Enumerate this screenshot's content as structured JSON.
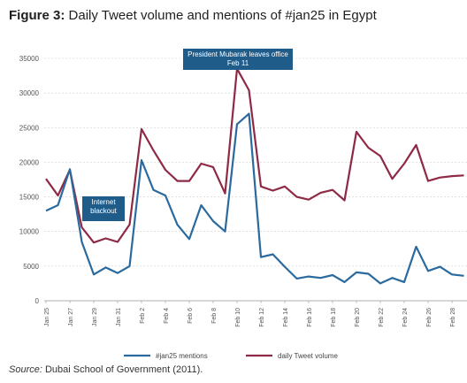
{
  "title": {
    "figure_label": "Figure 3:",
    "text": "Daily Tweet volume and mentions of #jan25 in Egypt"
  },
  "source": {
    "label": "Source:",
    "text": "Dubai School of Government (2011)."
  },
  "annotations": {
    "internet_blackout": "Internet blackout",
    "mubarak": "President Mubarak leaves office Feb 11"
  },
  "chart_data": {
    "type": "line",
    "title": "Daily Tweet volume and mentions of #jan25 in Egypt",
    "xlabel": "",
    "ylabel": "",
    "ylim": [
      0,
      35000
    ],
    "yticks": [
      0,
      5000,
      10000,
      15000,
      20000,
      25000,
      30000,
      35000
    ],
    "xtick_labels": [
      "Jan 25",
      "Jan 27",
      "Jan 29",
      "Jan 31",
      "Feb 2",
      "Feb 4",
      "Feb 6",
      "Feb 8",
      "Feb 10",
      "Feb 12",
      "Feb 14",
      "Feb 16",
      "Feb 18",
      "Feb 20",
      "Feb 22",
      "Feb 24",
      "Feb 26",
      "Feb 28"
    ],
    "grid": true,
    "legend_position": "bottom",
    "series": [
      {
        "name": "#jan25 mentions",
        "color": "#2a6a9e",
        "values": [
          13000,
          13800,
          19000,
          8500,
          3800,
          4800,
          4000,
          5000,
          20300,
          16000,
          15200,
          11000,
          8900,
          13800,
          11500,
          10000,
          25500,
          27000,
          6300,
          6700,
          4900,
          3200,
          3500,
          3300,
          3700,
          2700,
          4100,
          3900,
          2500,
          3300,
          2700,
          7800,
          4300,
          4900,
          3800,
          3600
        ]
      },
      {
        "name": "daily Tweet volume",
        "color": "#8e2a45",
        "values": [
          17600,
          15200,
          18900,
          10600,
          8400,
          9000,
          8500,
          11000,
          24800,
          21700,
          18900,
          17300,
          17300,
          19800,
          19300,
          15500,
          33500,
          30400,
          16500,
          15900,
          16500,
          15000,
          14600,
          15600,
          16000,
          14500,
          24400,
          22100,
          20900,
          17600,
          19800,
          22500,
          17300,
          17800,
          18000,
          18100
        ]
      }
    ]
  }
}
